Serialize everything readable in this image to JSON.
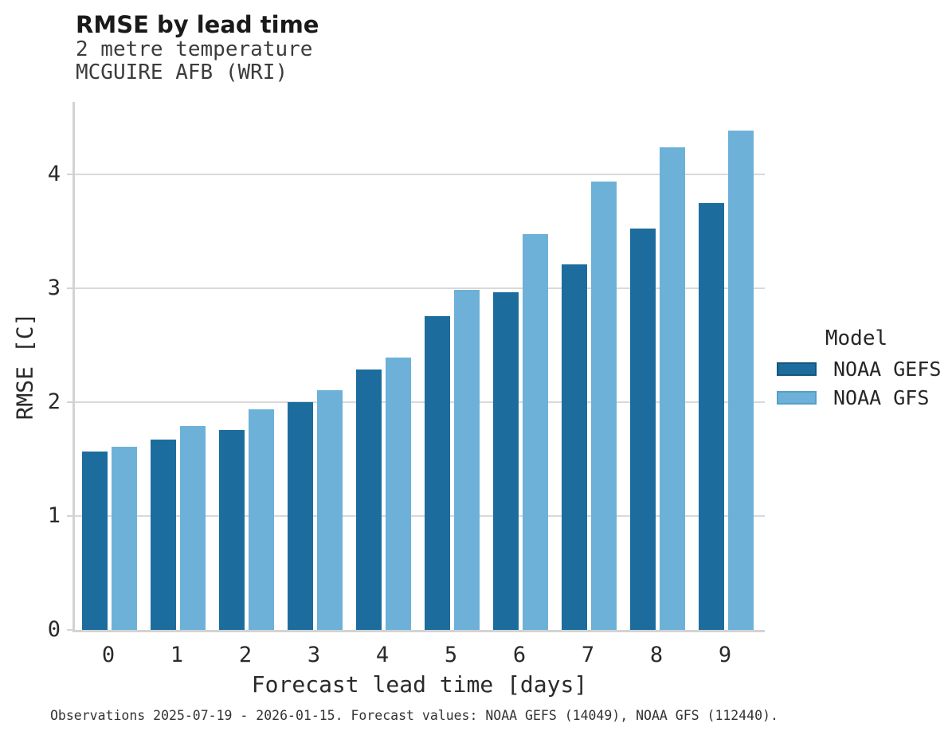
{
  "header": {
    "title": "RMSE by lead time",
    "subtitle_line1": "2 metre temperature",
    "subtitle_line2": "MCGUIRE AFB (WRI)"
  },
  "footer": {
    "note": "Observations 2025-07-19 - 2026-01-15. Forecast values: NOAA GEFS (14049), NOAA GFS (112440)."
  },
  "colors": {
    "gefs_bar": "#1c6d9e",
    "gefs_edge": "#15557d",
    "gfs_bar": "#6db1d8",
    "gfs_edge": "#569fcb",
    "gridline": "#d9d9d9",
    "spine": "#d3d3d3"
  },
  "chart_data": {
    "type": "bar",
    "title": "RMSE by lead time",
    "subtitle": [
      "2 metre temperature",
      "MCGUIRE AFB (WRI)"
    ],
    "categories": [
      "0",
      "1",
      "2",
      "3",
      "4",
      "5",
      "6",
      "7",
      "8",
      "9"
    ],
    "series": [
      {
        "name": "NOAA GEFS",
        "color": "#1c6d9e",
        "edge_color": "#15557d",
        "values": [
          1.57,
          1.67,
          1.76,
          2.0,
          2.29,
          2.76,
          2.97,
          3.21,
          3.53,
          3.75
        ]
      },
      {
        "name": "NOAA GFS",
        "color": "#6db1d8",
        "edge_color": "#569fcb",
        "values": [
          1.61,
          1.79,
          1.94,
          2.11,
          2.39,
          2.99,
          3.48,
          3.94,
          4.24,
          4.39
        ]
      }
    ],
    "xlabel": "Forecast lead time [days]",
    "ylabel": "RMSE [C]",
    "yticks": [
      0,
      1,
      2,
      3,
      4
    ],
    "ylim": [
      0,
      4.64
    ],
    "grid": true,
    "legend_title": "Model",
    "legend_position": "right",
    "caption": "Observations 2025-07-19 - 2026-01-15. Forecast values: NOAA GEFS (14049), NOAA GFS (112440)."
  }
}
